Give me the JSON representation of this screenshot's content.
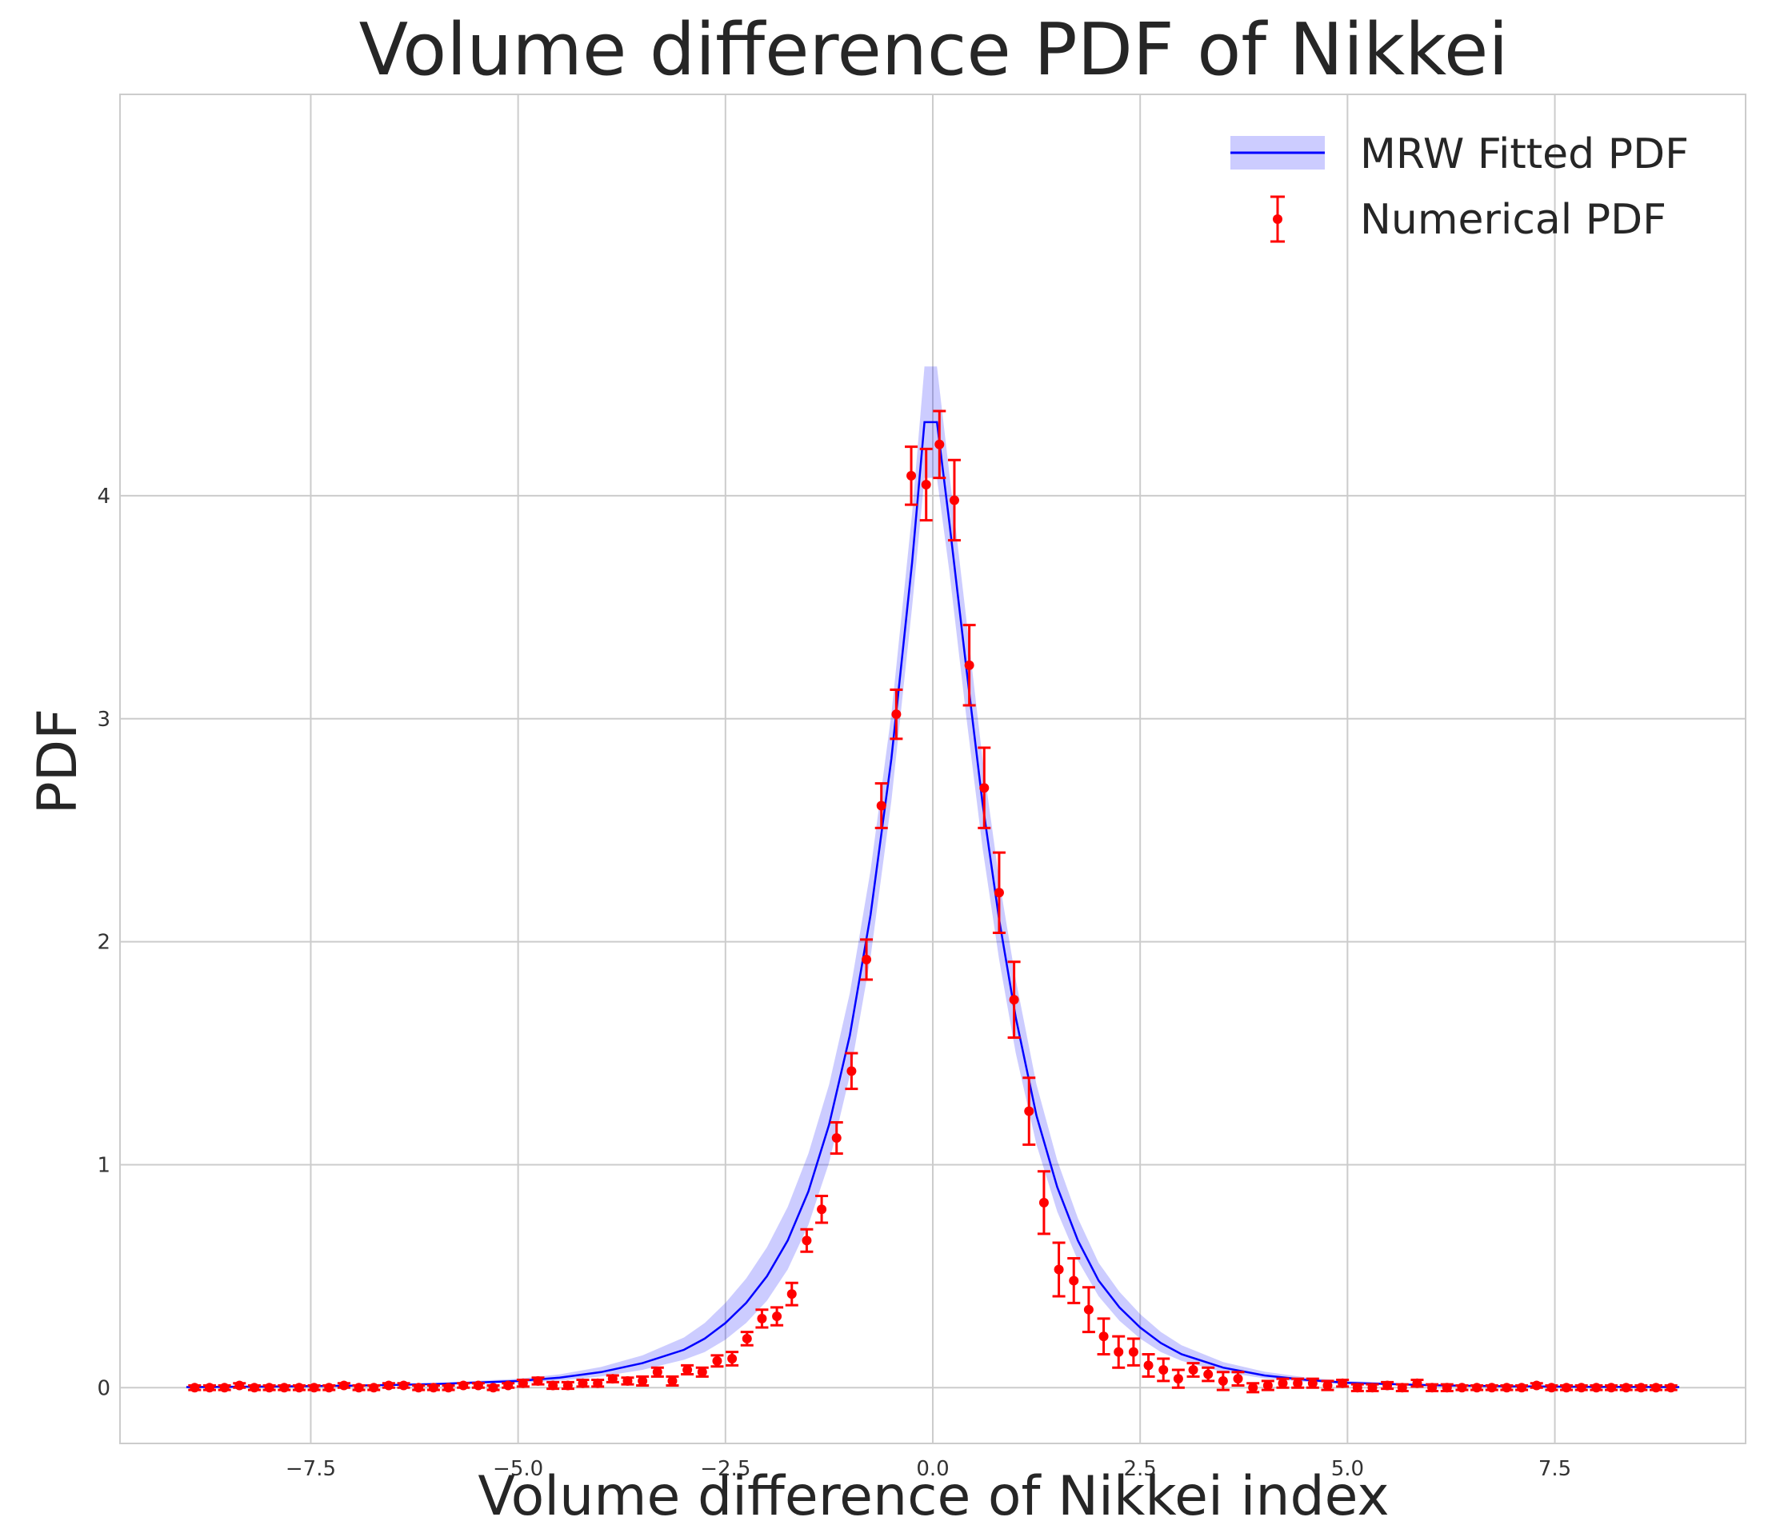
{
  "chart_data": {
    "type": "line",
    "title": "Volume difference PDF of Nikkei",
    "xlabel": "Volume difference of Nikkei index",
    "ylabel": "PDF",
    "xlim": [
      -9.8,
      9.8
    ],
    "ylim": [
      -0.25,
      5.8
    ],
    "xticks": [
      -7.5,
      -5.0,
      -2.5,
      0.0,
      2.5,
      5.0,
      7.5
    ],
    "xtick_labels": [
      "−7.5",
      "−5.0",
      "−2.5",
      "0.0",
      "2.5",
      "5.0",
      "7.5"
    ],
    "yticks": [
      0,
      1,
      2,
      3,
      4
    ],
    "ytick_labels": [
      "0",
      "1",
      "2",
      "3",
      "4"
    ],
    "grid": true,
    "legend_position": "top-right",
    "series": [
      {
        "name": "MRW Fitted PDF",
        "kind": "line_with_band",
        "color": "#0000ff",
        "band_color": "#0000ff",
        "x": [
          -9.0,
          -8.0,
          -7.0,
          -6.0,
          -5.0,
          -4.5,
          -4.0,
          -3.5,
          -3.0,
          -2.75,
          -2.5,
          -2.25,
          -2.0,
          -1.75,
          -1.5,
          -1.25,
          -1.0,
          -0.75,
          -0.5,
          -0.25,
          -0.1,
          0.05,
          0.2,
          0.4,
          0.6,
          0.8,
          1.0,
          1.25,
          1.5,
          1.75,
          2.0,
          2.25,
          2.5,
          2.75,
          3.0,
          3.5,
          4.0,
          4.5,
          5.0,
          6.0,
          7.0,
          8.0,
          9.0
        ],
        "y": [
          0.003,
          0.005,
          0.009,
          0.016,
          0.03,
          0.045,
          0.07,
          0.11,
          0.17,
          0.22,
          0.29,
          0.38,
          0.5,
          0.66,
          0.88,
          1.18,
          1.58,
          2.12,
          2.82,
          3.7,
          4.33,
          4.33,
          3.88,
          3.24,
          2.62,
          2.1,
          1.66,
          1.22,
          0.9,
          0.66,
          0.48,
          0.36,
          0.27,
          0.2,
          0.15,
          0.09,
          0.055,
          0.035,
          0.022,
          0.011,
          0.006,
          0.004,
          0.003
        ],
        "y_lower": [
          0.002,
          0.004,
          0.007,
          0.012,
          0.022,
          0.032,
          0.05,
          0.08,
          0.125,
          0.16,
          0.215,
          0.29,
          0.39,
          0.53,
          0.73,
          1.01,
          1.4,
          1.93,
          2.63,
          3.5,
          4.08,
          4.08,
          3.66,
          3.02,
          2.42,
          1.92,
          1.5,
          1.09,
          0.79,
          0.57,
          0.41,
          0.3,
          0.22,
          0.16,
          0.12,
          0.07,
          0.042,
          0.026,
          0.016,
          0.008,
          0.004,
          0.003,
          0.002
        ],
        "y_upper": [
          0.005,
          0.007,
          0.012,
          0.021,
          0.04,
          0.06,
          0.093,
          0.145,
          0.225,
          0.29,
          0.38,
          0.49,
          0.63,
          0.81,
          1.05,
          1.36,
          1.77,
          2.32,
          3.02,
          3.92,
          4.58,
          4.58,
          4.1,
          3.46,
          2.82,
          2.28,
          1.83,
          1.36,
          1.02,
          0.76,
          0.56,
          0.43,
          0.33,
          0.25,
          0.19,
          0.115,
          0.072,
          0.046,
          0.03,
          0.015,
          0.008,
          0.005,
          0.004
        ]
      },
      {
        "name": "Numerical PDF",
        "kind": "errorbar",
        "color": "#ff0000",
        "x": [
          -8.9,
          -8.72,
          -8.54,
          -8.36,
          -8.18,
          -8.0,
          -7.82,
          -7.64,
          -7.46,
          -7.28,
          -7.1,
          -6.92,
          -6.74,
          -6.56,
          -6.38,
          -6.2,
          -6.02,
          -5.84,
          -5.66,
          -5.48,
          -5.3,
          -5.12,
          -4.94,
          -4.76,
          -4.58,
          -4.4,
          -4.22,
          -4.04,
          -3.86,
          -3.68,
          -3.5,
          -3.32,
          -3.14,
          -2.96,
          -2.78,
          -2.6,
          -2.42,
          -2.24,
          -2.06,
          -1.88,
          -1.7,
          -1.52,
          -1.34,
          -1.16,
          -0.98,
          -0.8,
          -0.62,
          -0.44,
          -0.26,
          -0.08,
          0.08,
          0.26,
          0.44,
          0.62,
          0.8,
          0.98,
          1.16,
          1.34,
          1.52,
          1.7,
          1.88,
          2.06,
          2.24,
          2.42,
          2.6,
          2.78,
          2.96,
          3.14,
          3.32,
          3.5,
          3.68,
          3.86,
          4.04,
          4.22,
          4.4,
          4.58,
          4.76,
          4.94,
          5.12,
          5.3,
          5.48,
          5.66,
          5.84,
          6.02,
          6.2,
          6.38,
          6.56,
          6.74,
          6.92,
          7.1,
          7.28,
          7.46,
          7.64,
          7.82,
          8.0,
          8.18,
          8.36,
          8.54,
          8.72,
          8.9
        ],
        "y": [
          0.0,
          0.0,
          0.0,
          0.01,
          0.0,
          0.0,
          0.0,
          0.0,
          0.0,
          0.0,
          0.01,
          0.0,
          0.0,
          0.01,
          0.01,
          0.0,
          0.0,
          0.0,
          0.01,
          0.01,
          0.0,
          0.01,
          0.02,
          0.03,
          0.01,
          0.01,
          0.02,
          0.02,
          0.04,
          0.03,
          0.03,
          0.07,
          0.03,
          0.08,
          0.07,
          0.12,
          0.13,
          0.22,
          0.31,
          0.32,
          0.42,
          0.66,
          0.8,
          1.12,
          1.42,
          1.92,
          2.61,
          3.02,
          4.09,
          4.05,
          4.23,
          3.98,
          3.24,
          2.69,
          2.22,
          1.74,
          1.24,
          0.83,
          0.53,
          0.48,
          0.35,
          0.23,
          0.16,
          0.16,
          0.1,
          0.08,
          0.04,
          0.08,
          0.06,
          0.03,
          0.04,
          0.0,
          0.01,
          0.02,
          0.02,
          0.02,
          0.01,
          0.02,
          0.0,
          0.0,
          0.01,
          0.0,
          0.02,
          0.0,
          0.0,
          0.0,
          0.0,
          0.0,
          0.0,
          0.0,
          0.01,
          0.0,
          0.0,
          0.0,
          0.0,
          0.0,
          0.0,
          0.0,
          0.0,
          0.0
        ],
        "err": [
          0.01,
          0.01,
          0.01,
          0.01,
          0.01,
          0.01,
          0.01,
          0.01,
          0.01,
          0.01,
          0.01,
          0.01,
          0.01,
          0.01,
          0.01,
          0.01,
          0.01,
          0.01,
          0.01,
          0.01,
          0.01,
          0.01,
          0.015,
          0.015,
          0.015,
          0.015,
          0.015,
          0.015,
          0.015,
          0.015,
          0.02,
          0.02,
          0.02,
          0.02,
          0.02,
          0.025,
          0.03,
          0.03,
          0.04,
          0.04,
          0.05,
          0.05,
          0.06,
          0.07,
          0.08,
          0.09,
          0.1,
          0.11,
          0.13,
          0.16,
          0.15,
          0.18,
          0.18,
          0.18,
          0.18,
          0.17,
          0.15,
          0.14,
          0.12,
          0.1,
          0.1,
          0.08,
          0.07,
          0.06,
          0.05,
          0.05,
          0.04,
          0.03,
          0.03,
          0.04,
          0.03,
          0.02,
          0.02,
          0.02,
          0.02,
          0.02,
          0.02,
          0.015,
          0.015,
          0.015,
          0.015,
          0.015,
          0.015,
          0.015,
          0.015,
          0.01,
          0.01,
          0.01,
          0.01,
          0.01,
          0.01,
          0.01,
          0.01,
          0.01,
          0.01,
          0.01,
          0.01,
          0.01,
          0.01,
          0.01
        ]
      }
    ]
  }
}
